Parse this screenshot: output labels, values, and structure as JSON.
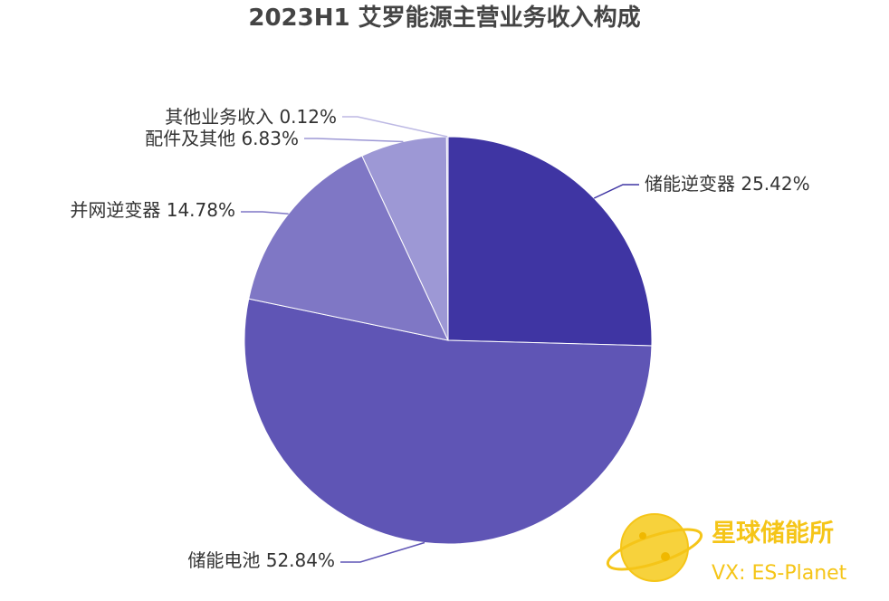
{
  "chart_data": {
    "type": "pie",
    "title": "2023H1 艾罗能源主营业务收入构成",
    "categories": [
      "储能逆变器",
      "储能电池",
      "并网逆变器",
      "配件及其他",
      "其他业务收入"
    ],
    "values": [
      25.42,
      52.84,
      14.78,
      6.83,
      0.12
    ],
    "value_labels": [
      "25.42%",
      "52.84%",
      "14.78%",
      "6.83%",
      "0.12%"
    ],
    "colors": [
      "#3f35a3",
      "#5f55b5",
      "#7f77c5",
      "#9d98d5",
      "#bdb9e4"
    ],
    "start": "12 o'clock, clockwise",
    "legend": "none"
  },
  "watermark": {
    "name": "星球储能所",
    "sub": "VX: ES-Planet",
    "color": "#f5c518",
    "icon": "planet-icon"
  }
}
